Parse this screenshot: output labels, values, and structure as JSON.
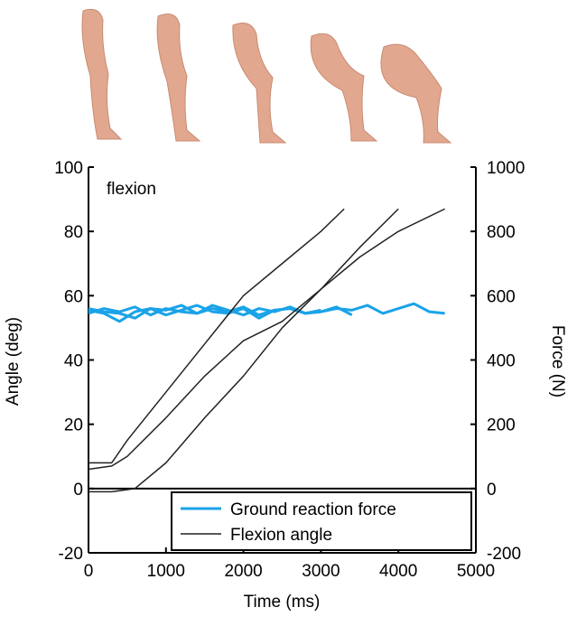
{
  "chart_data": {
    "type": "line",
    "annotation": "flexion",
    "xlabel": "Time (ms)",
    "ylabel": "Angle (deg)",
    "y2label": "Force (N)",
    "xlim": [
      0,
      5000
    ],
    "xticks": [
      0,
      1000,
      2000,
      3000,
      4000,
      5000
    ],
    "ylim": [
      -20,
      100
    ],
    "yticks": [
      -20,
      0,
      20,
      40,
      60,
      80,
      100
    ],
    "y2lim": [
      -200,
      1000
    ],
    "y2ticks": [
      -200,
      0,
      200,
      400,
      600,
      800,
      1000
    ],
    "legend": "lower right",
    "series": [
      {
        "name": "Ground reaction force",
        "color": "#1aa3e8",
        "axis": "y2",
        "x": [
          0,
          200,
          400,
          600,
          800,
          1000,
          1200,
          1400,
          1600,
          1800,
          2000,
          2200,
          2400,
          2600,
          2800,
          3000,
          3200,
          3400,
          3600,
          3800,
          4000,
          4200,
          4400,
          4600
        ],
        "values": [
          560,
          550,
          545,
          530,
          560,
          555,
          570,
          545,
          560,
          550,
          565,
          540,
          555,
          560,
          545,
          550,
          560,
          555,
          570,
          545,
          560,
          575,
          550,
          545
        ]
      },
      {
        "color": "#1aa3e8",
        "axis": "y2",
        "x": [
          0,
          200,
          400,
          600,
          800,
          1000,
          1200,
          1400,
          1600,
          1800,
          2000,
          2200,
          2400,
          2600,
          2800,
          3000,
          3200,
          3400
        ],
        "values": [
          555,
          545,
          520,
          550,
          560,
          540,
          555,
          570,
          550,
          545,
          560,
          530,
          555,
          560,
          545,
          550,
          565,
          540
        ]
      },
      {
        "color": "#1aa3e8",
        "axis": "y2",
        "x": [
          0,
          200,
          400,
          600,
          800,
          1000,
          1200,
          1400,
          1600,
          1800,
          2000,
          2200,
          2400,
          2600,
          2800,
          3000
        ],
        "values": [
          545,
          560,
          550,
          565,
          540,
          560,
          550,
          545,
          570,
          555,
          540,
          560,
          550,
          565,
          545,
          555
        ]
      },
      {
        "name": "Flexion angle",
        "color": "#222222",
        "x": [
          0,
          300,
          500,
          1000,
          1500,
          2000,
          2500,
          3000,
          3300
        ],
        "values": [
          8,
          8,
          15,
          30,
          45,
          60,
          70,
          80,
          87
        ]
      },
      {
        "color": "#222222",
        "x": [
          0,
          300,
          500,
          1000,
          1500,
          2000,
          2500,
          3000,
          3500,
          4000,
          4600
        ],
        "values": [
          6,
          7,
          10,
          22,
          35,
          46,
          52,
          62,
          72,
          80,
          87
        ]
      },
      {
        "color": "#222222",
        "x": [
          0,
          300,
          600,
          1000,
          1500,
          2000,
          2500,
          3000,
          3500,
          4000
        ],
        "values": [
          -1,
          -1,
          0,
          8,
          22,
          35,
          50,
          62,
          75,
          87
        ]
      }
    ]
  }
}
